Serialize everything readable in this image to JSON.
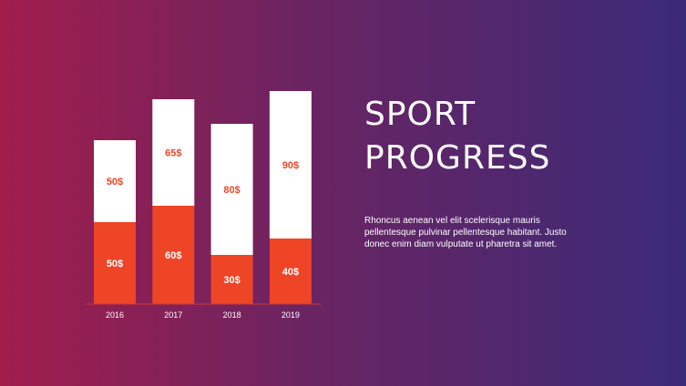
{
  "slide": {
    "title_line1": "SPORT",
    "title_line2": "PROGRESS",
    "description": "Rhoncus aenean vel elit scelerisque mauris pellentesque pulvinar pellentesque habitant. Justo donec enim diam vulputate ut pharetra sit amet."
  },
  "colors": {
    "bottom_segment": "#ee4527",
    "top_segment": "#ffffff",
    "label_on_orange": "#ffffff",
    "label_on_white": "#ee4527"
  },
  "chart_data": {
    "type": "bar",
    "stacked": true,
    "categories": [
      "2016",
      "2017",
      "2018",
      "2019"
    ],
    "series": [
      {
        "values": [
          50,
          60,
          30,
          40
        ],
        "labels": [
          "50$",
          "60$",
          "30$",
          "40$"
        ]
      },
      {
        "values": [
          50,
          65,
          80,
          90
        ],
        "labels": [
          "50$",
          "65$",
          "80$",
          "90$"
        ]
      }
    ],
    "title": "",
    "xlabel": "",
    "ylabel": "",
    "grid": false
  }
}
